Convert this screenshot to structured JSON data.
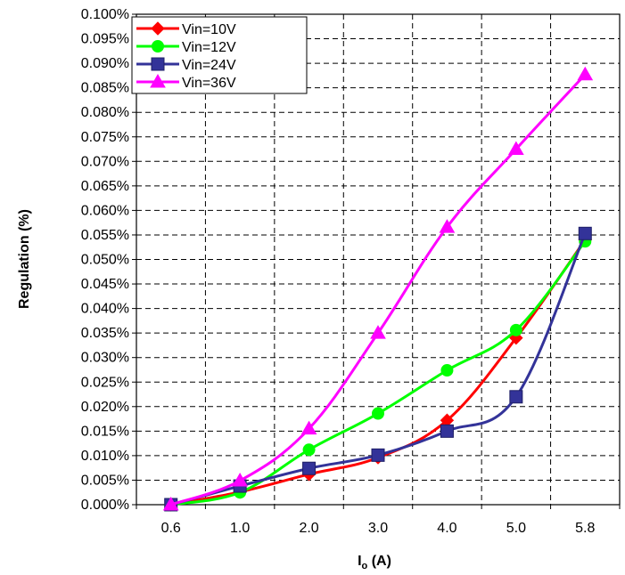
{
  "chart_data": {
    "type": "line",
    "title": "",
    "xlabel": {
      "main": "I",
      "sub": "o",
      "rest": " (A)"
    },
    "ylabel": "Regulation (%)",
    "categories": [
      "0.6",
      "1.0",
      "2.0",
      "3.0",
      "4.0",
      "5.0",
      "5.8"
    ],
    "y_tick_labels": [
      "0.000%",
      "0.005%",
      "0.010%",
      "0.015%",
      "0.020%",
      "0.025%",
      "0.030%",
      "0.035%",
      "0.040%",
      "0.045%",
      "0.050%",
      "0.055%",
      "0.060%",
      "0.065%",
      "0.070%",
      "0.075%",
      "0.080%",
      "0.085%",
      "0.090%",
      "0.095%",
      "0.100%"
    ],
    "ylim": [
      0,
      0.1
    ],
    "ytick_step": 0.005,
    "grid": true,
    "legend_position": "top-left",
    "series": [
      {
        "name": "Vin=10V",
        "color": "#ff0000",
        "marker": "diamond",
        "values": [
          0,
          0.0026,
          0.0062,
          0.0096,
          0.0172,
          0.034,
          0.054
        ]
      },
      {
        "name": "Vin=12V",
        "color": "#00ff00",
        "marker": "circle",
        "values": [
          0,
          0.0025,
          0.0112,
          0.0186,
          0.0274,
          0.0356,
          0.0537
        ]
      },
      {
        "name": "Vin=24V",
        "color": "#333399",
        "marker": "square",
        "values": [
          0,
          0.0038,
          0.0074,
          0.0101,
          0.015,
          0.022,
          0.0553
        ]
      },
      {
        "name": "Vin=36V",
        "color": "#ff00ff",
        "marker": "triangle",
        "values": [
          0,
          0.0049,
          0.0155,
          0.035,
          0.0566,
          0.0725,
          0.0877
        ]
      }
    ]
  }
}
